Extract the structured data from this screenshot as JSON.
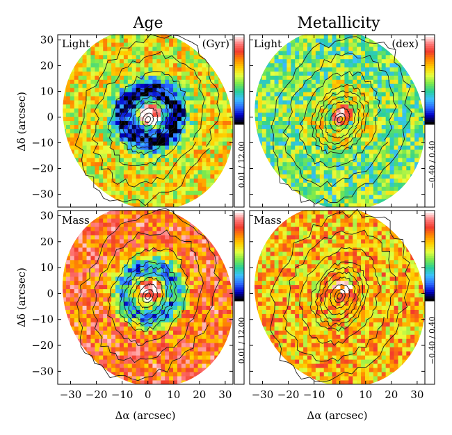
{
  "colors": {
    "colormap": [
      "#ffffff",
      "#ff7a7a",
      "#f23c2c",
      "#ff8a00",
      "#ffd000",
      "#e6ff40",
      "#7ce94c",
      "#28cf9a",
      "#3cc0ff",
      "#2c6cff",
      "#0000c8",
      "#000000"
    ],
    "contour": "#1a1a1a"
  },
  "chart_data": [
    {
      "type": "heatmap",
      "column_title": "Age",
      "row_label": "Light",
      "unit_label": "(Gyr)",
      "colorbar_label": "0.01 / 12.00",
      "xlabel": "Δα (arcsec)",
      "ylabel": "Δδ (arcsec)",
      "xticks": [
        "−30",
        "−20",
        "−10",
        "0",
        "10",
        "20",
        "30"
      ],
      "yticks": [
        "30",
        "20",
        "10",
        "0",
        "−10",
        "−20",
        "−30"
      ],
      "xlim": [
        -35,
        33
      ],
      "ylim": [
        -35,
        32
      ],
      "color_range": [
        0.01,
        12.0
      ],
      "pattern": {
        "center": 12.0,
        "ring": 0.6,
        "outer": 7.0,
        "ring_radius": 10,
        "ring_width": 5
      }
    },
    {
      "type": "heatmap",
      "column_title": "Metallicity",
      "row_label": "Light",
      "unit_label": "(dex)",
      "colorbar_label": "−0.40 / 0.40",
      "xlabel": "Δα (arcsec)",
      "ylabel": "Δδ (arcsec)",
      "xticks": [
        "−30",
        "−20",
        "−10",
        "0",
        "10",
        "20",
        "30"
      ],
      "yticks": [
        "30",
        "20",
        "10",
        "0",
        "−10",
        "−20",
        "−30"
      ],
      "xlim": [
        -35,
        33
      ],
      "ylim": [
        -35,
        32
      ],
      "color_range": [
        -0.4,
        0.4
      ],
      "pattern": {
        "center": 0.25,
        "ring": 0.05,
        "outer": -0.05,
        "ring_radius": 10,
        "ring_width": 5
      }
    },
    {
      "type": "heatmap",
      "column_title": "Age",
      "row_label": "Mass",
      "unit_label": "",
      "colorbar_label": "0.01 / 12.00",
      "xlabel": "Δα (arcsec)",
      "ylabel": "Δδ (arcsec)",
      "xticks": [
        "−30",
        "−20",
        "−10",
        "0",
        "10",
        "20",
        "30"
      ],
      "yticks": [
        "30",
        "20",
        "10",
        "0",
        "−10",
        "−20",
        "−30"
      ],
      "xlim": [
        -35,
        33
      ],
      "ylim": [
        -35,
        32
      ],
      "color_range": [
        0.01,
        12.0
      ],
      "pattern": {
        "center": 11.5,
        "ring": 3.0,
        "outer": 9.5,
        "ring_radius": 10,
        "ring_width": 5
      }
    },
    {
      "type": "heatmap",
      "column_title": "Metallicity",
      "row_label": "Mass",
      "unit_label": "",
      "colorbar_label": "−0.40 / 0.40",
      "xlabel": "Δα (arcsec)",
      "ylabel": "Δδ (arcsec)",
      "xticks": [
        "−30",
        "−20",
        "−10",
        "0",
        "10",
        "20",
        "30"
      ],
      "yticks": [
        "30",
        "20",
        "10",
        "0",
        "−10",
        "−20",
        "−30"
      ],
      "xlim": [
        -35,
        33
      ],
      "ylim": [
        -35,
        32
      ],
      "color_range": [
        -0.4,
        0.4
      ],
      "pattern": {
        "center": 0.3,
        "ring": 0.12,
        "outer": 0.12,
        "ring_radius": 10,
        "ring_width": 5
      }
    }
  ]
}
